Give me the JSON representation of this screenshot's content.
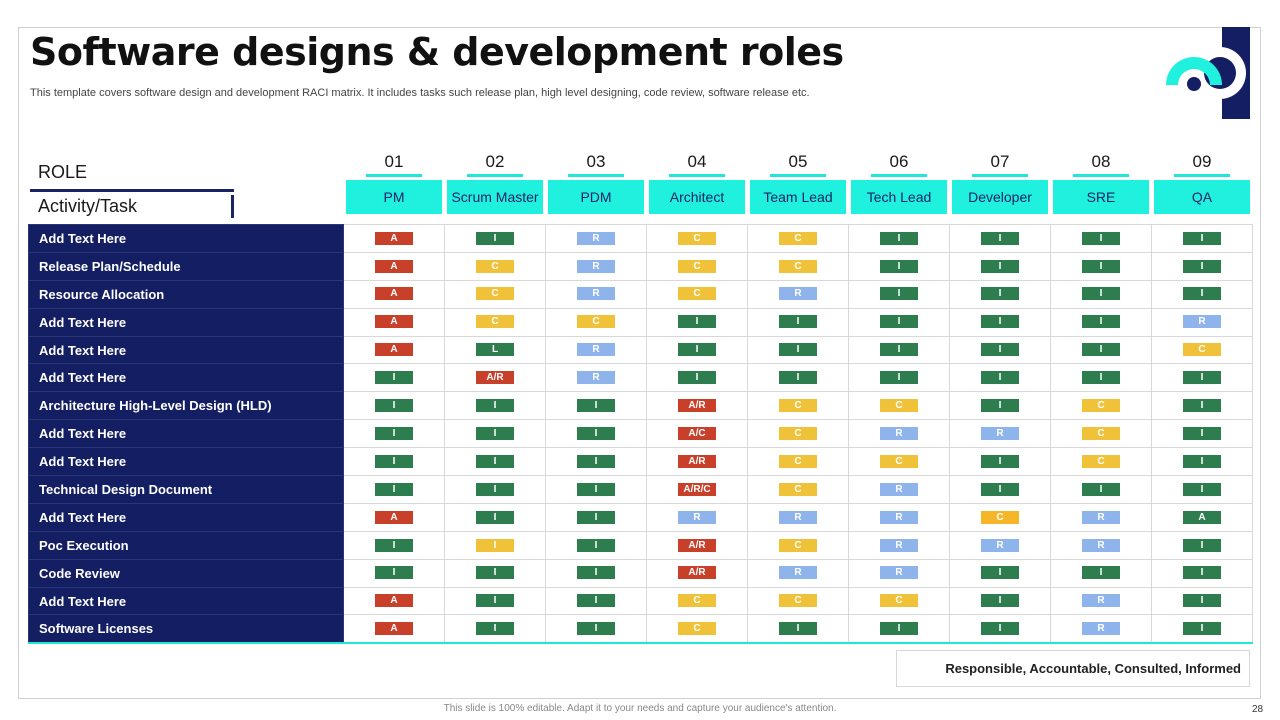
{
  "title": "Software designs & development roles",
  "subtitle": "This template covers software design and development RACI matrix. It includes tasks such release plan, high level designing, code review, software release etc.",
  "role_label": "ROLE",
  "activity_label": "Activity/Task",
  "columns": [
    {
      "num": "01",
      "label": "PM"
    },
    {
      "num": "02",
      "label": "Scrum Master"
    },
    {
      "num": "03",
      "label": "PDM"
    },
    {
      "num": "04",
      "label": "Architect"
    },
    {
      "num": "05",
      "label": "Team Lead"
    },
    {
      "num": "06",
      "label": "Tech Lead"
    },
    {
      "num": "07",
      "label": "Developer"
    },
    {
      "num": "08",
      "label": "SRE"
    },
    {
      "num": "09",
      "label": "QA"
    }
  ],
  "rows": [
    {
      "task": "Add Text Here",
      "cells": [
        {
          "t": "A",
          "c": "red"
        },
        {
          "t": "I",
          "c": "green"
        },
        {
          "t": "R",
          "c": "blue"
        },
        {
          "t": "C",
          "c": "yellow"
        },
        {
          "t": "C",
          "c": "yellow"
        },
        {
          "t": "I",
          "c": "green"
        },
        {
          "t": "I",
          "c": "green"
        },
        {
          "t": "I",
          "c": "green"
        },
        {
          "t": "I",
          "c": "green"
        }
      ]
    },
    {
      "task": "Release Plan/Schedule",
      "cells": [
        {
          "t": "A",
          "c": "red"
        },
        {
          "t": "C",
          "c": "yellow"
        },
        {
          "t": "R",
          "c": "blue"
        },
        {
          "t": "C",
          "c": "yellow"
        },
        {
          "t": "C",
          "c": "yellow"
        },
        {
          "t": "I",
          "c": "green"
        },
        {
          "t": "I",
          "c": "green"
        },
        {
          "t": "I",
          "c": "green"
        },
        {
          "t": "I",
          "c": "green"
        }
      ]
    },
    {
      "task": "Resource Allocation",
      "cells": [
        {
          "t": "A",
          "c": "red"
        },
        {
          "t": "C",
          "c": "yellow"
        },
        {
          "t": "R",
          "c": "blue"
        },
        {
          "t": "C",
          "c": "yellow"
        },
        {
          "t": "R",
          "c": "blue"
        },
        {
          "t": "I",
          "c": "green"
        },
        {
          "t": "I",
          "c": "green"
        },
        {
          "t": "I",
          "c": "green"
        },
        {
          "t": "I",
          "c": "green"
        }
      ]
    },
    {
      "task": "Add Text Here",
      "cells": [
        {
          "t": "A",
          "c": "red"
        },
        {
          "t": "C",
          "c": "yellow"
        },
        {
          "t": "C",
          "c": "yellow"
        },
        {
          "t": "I",
          "c": "green"
        },
        {
          "t": "I",
          "c": "green"
        },
        {
          "t": "I",
          "c": "green"
        },
        {
          "t": "I",
          "c": "green"
        },
        {
          "t": "I",
          "c": "green"
        },
        {
          "t": "R",
          "c": "blue"
        }
      ]
    },
    {
      "task": "Add Text Here",
      "cells": [
        {
          "t": "A",
          "c": "red"
        },
        {
          "t": "L",
          "c": "green"
        },
        {
          "t": "R",
          "c": "blue"
        },
        {
          "t": "I",
          "c": "green"
        },
        {
          "t": "I",
          "c": "green"
        },
        {
          "t": "I",
          "c": "green"
        },
        {
          "t": "I",
          "c": "green"
        },
        {
          "t": "I",
          "c": "green"
        },
        {
          "t": "C",
          "c": "yellow"
        }
      ]
    },
    {
      "task": "Add Text Here",
      "cells": [
        {
          "t": "I",
          "c": "green"
        },
        {
          "t": "A/R",
          "c": "red"
        },
        {
          "t": "R",
          "c": "blue"
        },
        {
          "t": "I",
          "c": "green"
        },
        {
          "t": "I",
          "c": "green"
        },
        {
          "t": "I",
          "c": "green"
        },
        {
          "t": "I",
          "c": "green"
        },
        {
          "t": "I",
          "c": "green"
        },
        {
          "t": "I",
          "c": "green"
        }
      ]
    },
    {
      "task": "Architecture High-Level Design (HLD)",
      "cells": [
        {
          "t": "I",
          "c": "green"
        },
        {
          "t": "I",
          "c": "green"
        },
        {
          "t": "I",
          "c": "green"
        },
        {
          "t": "A/R",
          "c": "red"
        },
        {
          "t": "C",
          "c": "yellow"
        },
        {
          "t": "C",
          "c": "yellow"
        },
        {
          "t": "I",
          "c": "green"
        },
        {
          "t": "C",
          "c": "yellow"
        },
        {
          "t": "I",
          "c": "green"
        }
      ]
    },
    {
      "task": "Add Text Here",
      "cells": [
        {
          "t": "I",
          "c": "green"
        },
        {
          "t": "I",
          "c": "green"
        },
        {
          "t": "I",
          "c": "green"
        },
        {
          "t": "A/C",
          "c": "red"
        },
        {
          "t": "C",
          "c": "yellow"
        },
        {
          "t": "R",
          "c": "blue"
        },
        {
          "t": "R",
          "c": "blue"
        },
        {
          "t": "C",
          "c": "yellow"
        },
        {
          "t": "I",
          "c": "green"
        }
      ]
    },
    {
      "task": "Add Text Here",
      "cells": [
        {
          "t": "I",
          "c": "green"
        },
        {
          "t": "I",
          "c": "green"
        },
        {
          "t": "I",
          "c": "green"
        },
        {
          "t": "A/R",
          "c": "red"
        },
        {
          "t": "C",
          "c": "yellow"
        },
        {
          "t": "C",
          "c": "yellow"
        },
        {
          "t": "I",
          "c": "green"
        },
        {
          "t": "C",
          "c": "yellow"
        },
        {
          "t": "I",
          "c": "green"
        }
      ]
    },
    {
      "task": "Technical Design Document",
      "cells": [
        {
          "t": "I",
          "c": "green"
        },
        {
          "t": "I",
          "c": "green"
        },
        {
          "t": "I",
          "c": "green"
        },
        {
          "t": "A/R/C",
          "c": "red"
        },
        {
          "t": "C",
          "c": "yellow"
        },
        {
          "t": "R",
          "c": "blue"
        },
        {
          "t": "I",
          "c": "green"
        },
        {
          "t": "I",
          "c": "green"
        },
        {
          "t": "I",
          "c": "green"
        }
      ]
    },
    {
      "task": "Add Text Here",
      "cells": [
        {
          "t": "A",
          "c": "red"
        },
        {
          "t": "I",
          "c": "green"
        },
        {
          "t": "I",
          "c": "green"
        },
        {
          "t": "R",
          "c": "blue"
        },
        {
          "t": "R",
          "c": "blue"
        },
        {
          "t": "R",
          "c": "blue"
        },
        {
          "t": "C",
          "c": "orange"
        },
        {
          "t": "R",
          "c": "blue"
        },
        {
          "t": "A",
          "c": "green"
        }
      ]
    },
    {
      "task": "Poc Execution",
      "cells": [
        {
          "t": "I",
          "c": "green"
        },
        {
          "t": "I",
          "c": "yellow"
        },
        {
          "t": "I",
          "c": "green"
        },
        {
          "t": "A/R",
          "c": "red"
        },
        {
          "t": "C",
          "c": "yellow"
        },
        {
          "t": "R",
          "c": "blue"
        },
        {
          "t": "R",
          "c": "blue"
        },
        {
          "t": "R",
          "c": "blue"
        },
        {
          "t": "I",
          "c": "green"
        }
      ]
    },
    {
      "task": "Code Review",
      "cells": [
        {
          "t": "I",
          "c": "green"
        },
        {
          "t": "I",
          "c": "green"
        },
        {
          "t": "I",
          "c": "green"
        },
        {
          "t": "A/R",
          "c": "red"
        },
        {
          "t": "R",
          "c": "blue"
        },
        {
          "t": "R",
          "c": "blue"
        },
        {
          "t": "I",
          "c": "green"
        },
        {
          "t": "I",
          "c": "green"
        },
        {
          "t": "I",
          "c": "green"
        }
      ]
    },
    {
      "task": "Add Text Here",
      "cells": [
        {
          "t": "A",
          "c": "red"
        },
        {
          "t": "I",
          "c": "green"
        },
        {
          "t": "I",
          "c": "green"
        },
        {
          "t": "C",
          "c": "yellow"
        },
        {
          "t": "C",
          "c": "yellow"
        },
        {
          "t": "C",
          "c": "yellow"
        },
        {
          "t": "I",
          "c": "green"
        },
        {
          "t": "R",
          "c": "blue"
        },
        {
          "t": "I",
          "c": "green"
        }
      ]
    },
    {
      "task": "Software Licenses",
      "cells": [
        {
          "t": "A",
          "c": "red"
        },
        {
          "t": "I",
          "c": "green"
        },
        {
          "t": "I",
          "c": "green"
        },
        {
          "t": "C",
          "c": "yellow"
        },
        {
          "t": "I",
          "c": "green"
        },
        {
          "t": "I",
          "c": "green"
        },
        {
          "t": "I",
          "c": "green"
        },
        {
          "t": "R",
          "c": "blue"
        },
        {
          "t": "I",
          "c": "green"
        }
      ]
    }
  ],
  "legend": "Responsible, Accountable, Consulted, Informed",
  "footer": "This slide is 100% editable. Adapt it to your needs and capture your audience's attention.",
  "page_number": "28",
  "colors": {
    "red": "#c8402a",
    "green": "#2e7d4f",
    "blue": "#8fb4ec",
    "yellow": "#f0c23a",
    "orange": "#f5b62a",
    "navy": "#141e63",
    "teal": "#20f0de"
  },
  "icons": {
    "logo": "brand-logo-icon"
  }
}
